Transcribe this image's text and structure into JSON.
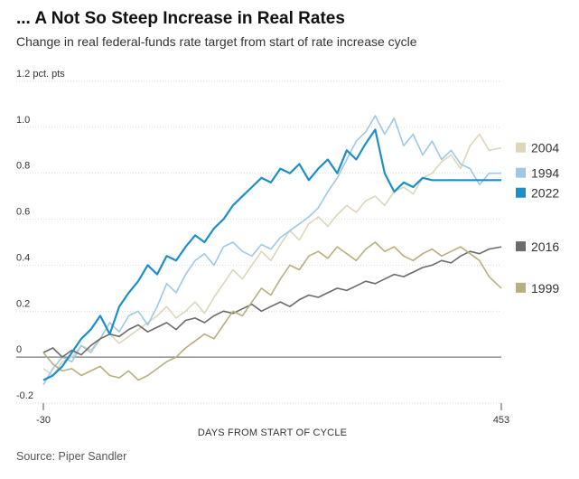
{
  "header": {
    "title": "... A Not So Steep Increase in Real Rates",
    "subtitle": "Change in real federal-funds rate target from start of rate increase cycle"
  },
  "footer": {
    "source": "Source: Piper Sandler"
  },
  "chart_data": {
    "type": "line",
    "title": "... A Not So Steep Increase in Real Rates",
    "subtitle": "Change in real federal-funds rate target from start of rate increase cycle",
    "xlabel": "DAYS FROM START OF CYCLE",
    "ylabel": "",
    "xlim": [
      -30,
      453
    ],
    "ylim": [
      -0.2,
      1.2
    ],
    "y_unit_label": "1.2 pct. pts",
    "y_ticks": [
      {
        "value": 1.2,
        "label": "1.2 pct. pts"
      },
      {
        "value": 1.0,
        "label": "1.0"
      },
      {
        "value": 0.8,
        "label": "0.8"
      },
      {
        "value": 0.6,
        "label": "0.6"
      },
      {
        "value": 0.4,
        "label": "0.4"
      },
      {
        "value": 0.2,
        "label": "0.2"
      },
      {
        "value": 0,
        "label": "0"
      },
      {
        "value": -0.2,
        "label": "-0.2"
      }
    ],
    "x_ticks": [
      {
        "value": -30,
        "label": "-30"
      },
      {
        "value": 453,
        "label": "453"
      }
    ],
    "grid": "horizontal",
    "legend_position": "right",
    "series": [
      {
        "name": "2004",
        "color": "#ddd6bb",
        "width": 1.6,
        "x": [
          -30,
          -20,
          -10,
          0,
          10,
          20,
          30,
          40,
          50,
          60,
          70,
          80,
          90,
          100,
          110,
          120,
          130,
          140,
          150,
          160,
          170,
          180,
          190,
          200,
          210,
          220,
          230,
          240,
          250,
          260,
          270,
          280,
          290,
          300,
          310,
          320,
          330,
          340,
          350,
          360,
          370,
          380,
          390,
          400,
          410,
          420,
          430,
          440,
          453
        ],
        "y": [
          -0.05,
          -0.08,
          -0.02,
          0.0,
          0.05,
          0.03,
          0.08,
          0.1,
          0.06,
          0.09,
          0.12,
          0.15,
          0.18,
          0.22,
          0.17,
          0.2,
          0.24,
          0.19,
          0.26,
          0.32,
          0.38,
          0.34,
          0.4,
          0.46,
          0.42,
          0.49,
          0.55,
          0.51,
          0.58,
          0.61,
          0.57,
          0.62,
          0.66,
          0.63,
          0.68,
          0.7,
          0.66,
          0.72,
          0.74,
          0.71,
          0.78,
          0.8,
          0.85,
          0.88,
          0.82,
          0.92,
          0.97,
          0.9,
          0.91
        ]
      },
      {
        "name": "1994",
        "color": "#9dc8e8",
        "width": 1.6,
        "x": [
          -30,
          -20,
          -10,
          0,
          10,
          20,
          30,
          40,
          50,
          60,
          70,
          80,
          90,
          100,
          110,
          120,
          130,
          140,
          150,
          160,
          170,
          180,
          190,
          200,
          210,
          220,
          230,
          240,
          250,
          260,
          270,
          280,
          290,
          300,
          310,
          320,
          330,
          340,
          350,
          360,
          370,
          380,
          390,
          400,
          410,
          420,
          430,
          440,
          453
        ],
        "y": [
          -0.12,
          -0.05,
          0.0,
          -0.02,
          0.05,
          0.02,
          0.08,
          0.15,
          0.11,
          0.18,
          0.2,
          0.14,
          0.22,
          0.32,
          0.28,
          0.36,
          0.42,
          0.45,
          0.4,
          0.48,
          0.5,
          0.46,
          0.44,
          0.49,
          0.47,
          0.52,
          0.55,
          0.58,
          0.61,
          0.65,
          0.72,
          0.78,
          0.86,
          0.94,
          0.98,
          1.05,
          0.97,
          1.04,
          0.92,
          0.97,
          0.88,
          0.94,
          0.86,
          0.9,
          0.84,
          0.82,
          0.75,
          0.8,
          0.8
        ]
      },
      {
        "name": "2016",
        "color": "#6b6b6b",
        "width": 1.6,
        "x": [
          -30,
          -20,
          -10,
          0,
          10,
          20,
          30,
          40,
          50,
          60,
          70,
          80,
          90,
          100,
          110,
          120,
          130,
          140,
          150,
          160,
          170,
          180,
          190,
          200,
          210,
          220,
          230,
          240,
          250,
          260,
          270,
          280,
          290,
          300,
          310,
          320,
          330,
          340,
          350,
          360,
          370,
          380,
          390,
          400,
          410,
          420,
          430,
          440,
          453
        ],
        "y": [
          0.02,
          0.04,
          0.0,
          0.03,
          0.01,
          0.05,
          0.08,
          0.1,
          0.09,
          0.12,
          0.14,
          0.11,
          0.13,
          0.15,
          0.12,
          0.16,
          0.17,
          0.15,
          0.18,
          0.2,
          0.19,
          0.21,
          0.23,
          0.2,
          0.22,
          0.24,
          0.22,
          0.25,
          0.27,
          0.26,
          0.28,
          0.3,
          0.29,
          0.31,
          0.33,
          0.32,
          0.34,
          0.36,
          0.35,
          0.37,
          0.39,
          0.4,
          0.42,
          0.41,
          0.44,
          0.46,
          0.45,
          0.47,
          0.48
        ]
      },
      {
        "name": "1999",
        "color": "#b9ae7e",
        "width": 1.6,
        "x": [
          -30,
          -20,
          -10,
          0,
          10,
          20,
          30,
          40,
          50,
          60,
          70,
          80,
          90,
          100,
          110,
          120,
          130,
          140,
          150,
          160,
          170,
          180,
          190,
          200,
          210,
          220,
          230,
          240,
          250,
          260,
          270,
          280,
          290,
          300,
          310,
          320,
          330,
          340,
          350,
          360,
          370,
          380,
          390,
          400,
          410,
          420,
          430,
          440,
          453
        ],
        "y": [
          0.02,
          -0.03,
          -0.06,
          -0.05,
          -0.08,
          -0.06,
          -0.04,
          -0.08,
          -0.09,
          -0.06,
          -0.1,
          -0.08,
          -0.05,
          -0.02,
          0.0,
          0.04,
          0.07,
          0.1,
          0.08,
          0.14,
          0.2,
          0.18,
          0.24,
          0.3,
          0.27,
          0.34,
          0.4,
          0.38,
          0.44,
          0.46,
          0.43,
          0.48,
          0.45,
          0.42,
          0.47,
          0.5,
          0.46,
          0.48,
          0.44,
          0.42,
          0.45,
          0.47,
          0.44,
          0.46,
          0.48,
          0.45,
          0.42,
          0.35,
          0.3
        ]
      },
      {
        "name": "2022",
        "color": "#1a8fc9",
        "width": 2.2,
        "x": [
          -30,
          -20,
          -10,
          0,
          10,
          20,
          30,
          40,
          50,
          60,
          70,
          80,
          90,
          100,
          110,
          120,
          130,
          140,
          150,
          160,
          170,
          180,
          190,
          200,
          210,
          220,
          230,
          240,
          250,
          260,
          270,
          280,
          290,
          300,
          310,
          320,
          330,
          340,
          350,
          360,
          370,
          380,
          390,
          400,
          410,
          420,
          430,
          440,
          453
        ],
        "y": [
          -0.1,
          -0.08,
          -0.04,
          0.02,
          0.08,
          0.12,
          0.18,
          0.1,
          0.22,
          0.28,
          0.33,
          0.4,
          0.36,
          0.44,
          0.42,
          0.48,
          0.53,
          0.5,
          0.56,
          0.6,
          0.66,
          0.7,
          0.74,
          0.78,
          0.76,
          0.82,
          0.8,
          0.84,
          0.77,
          0.82,
          0.86,
          0.8,
          0.9,
          0.86,
          0.93,
          0.99,
          0.8,
          0.72,
          0.76,
          0.74,
          0.78,
          0.77,
          0.77,
          0.77,
          0.77,
          0.77,
          0.77,
          0.77,
          0.77
        ]
      }
    ]
  }
}
